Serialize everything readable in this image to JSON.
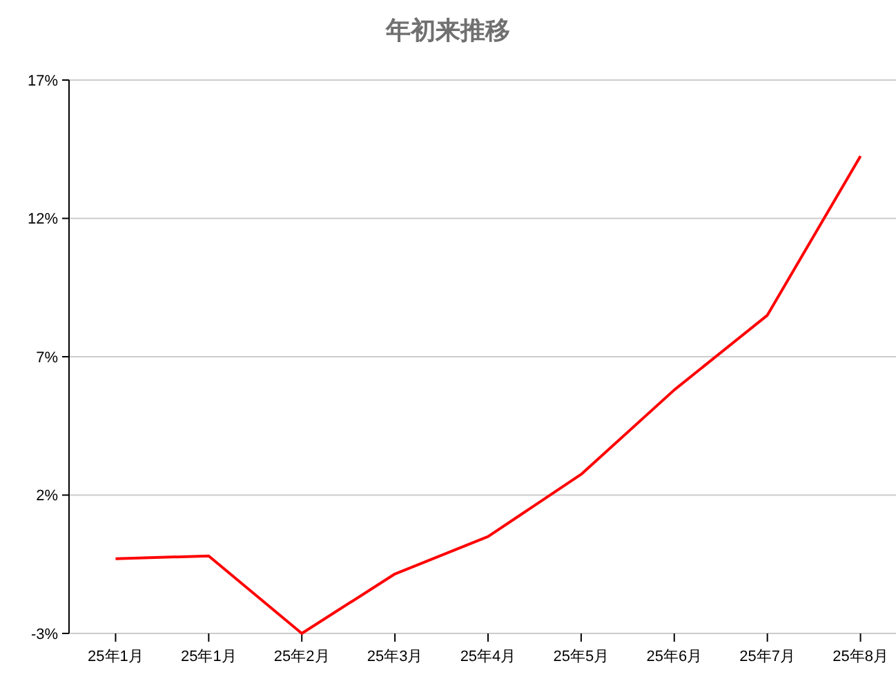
{
  "chart_data": {
    "type": "line",
    "title": "年初来推移",
    "categories": [
      "25年1月",
      "25年1月",
      "25年2月",
      "25年3月",
      "25年4月",
      "25年5月",
      "25年6月",
      "25年7月",
      "25年8月"
    ],
    "series": [
      {
        "color": "#ff0000",
        "values": [
          -0.3,
          -0.2,
          -3.0,
          -0.85,
          0.5,
          2.75,
          5.8,
          8.5,
          14.25
        ]
      }
    ],
    "ylim": [
      -3,
      17
    ],
    "yticks": [
      {
        "value": -3,
        "label": "-3%"
      },
      {
        "value": 2,
        "label": "2%"
      },
      {
        "value": 7,
        "label": "7%"
      },
      {
        "value": 12,
        "label": "12%"
      },
      {
        "value": 17,
        "label": "17%"
      }
    ],
    "grid": "y",
    "marker": "none",
    "line_style": "solid"
  }
}
